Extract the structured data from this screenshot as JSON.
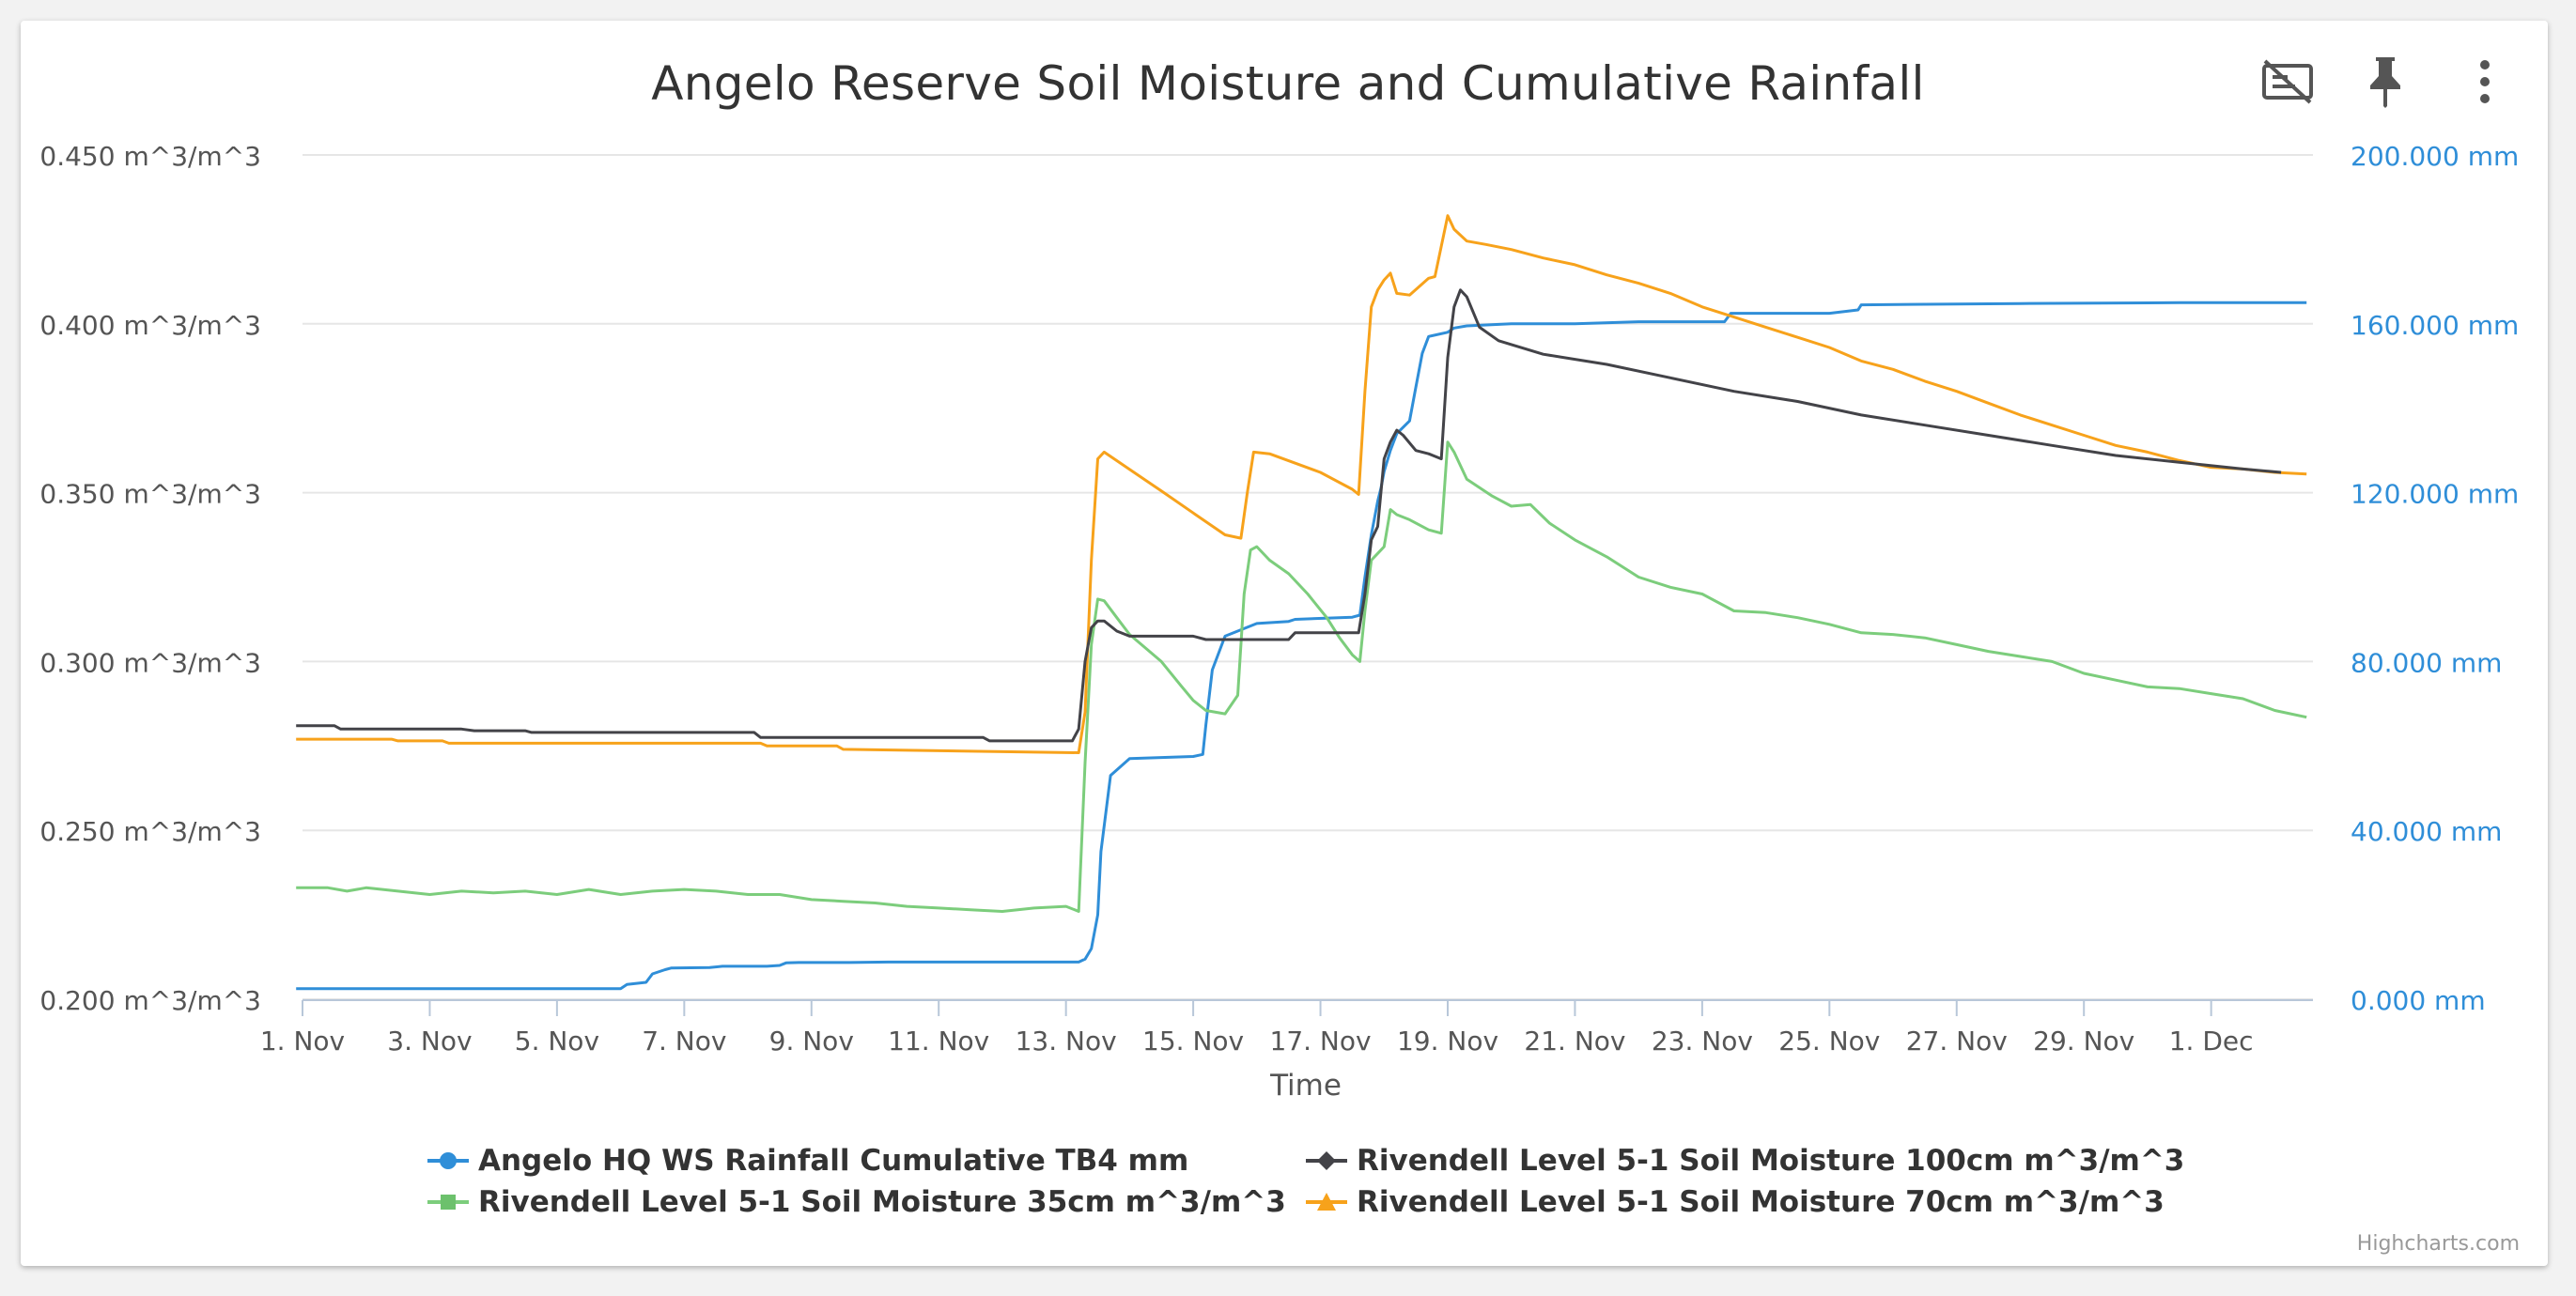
{
  "chart_data": {
    "type": "line",
    "title": "Angelo Reserve Soil Moisture and Cumulative Rainfall",
    "xlabel": "Time",
    "x_ticks": [
      "1. Nov",
      "3. Nov",
      "5. Nov",
      "7. Nov",
      "9. Nov",
      "11. Nov",
      "13. Nov",
      "15. Nov",
      "17. Nov",
      "19. Nov",
      "21. Nov",
      "23. Nov",
      "25. Nov",
      "27. Nov",
      "29. Nov",
      "1. Dec"
    ],
    "xlim": [
      0.0,
      31.6
    ],
    "y_left": {
      "ticks": [
        "0.200 m^3/m^3",
        "0.250 m^3/m^3",
        "0.300 m^3/m^3",
        "0.350 m^3/m^3",
        "0.400 m^3/m^3",
        "0.450 m^3/m^3"
      ],
      "ylim": [
        0.2,
        0.45
      ]
    },
    "y_right": {
      "ticks": [
        "0.000 mm",
        "40.000 mm",
        "80.000 mm",
        "120.000 mm",
        "160.000 mm",
        "200.000 mm"
      ],
      "ylim": [
        0,
        200
      ]
    },
    "grid": true,
    "legend_position": "bottom",
    "credits": "Highcharts.com",
    "series": [
      {
        "name": "Angelo HQ WS Rainfall Cumulative TB4 mm",
        "axis": "right",
        "color": "#2f8ed8",
        "marker": "circle",
        "points": [
          [
            -0.1,
            2.5
          ],
          [
            5,
            2.5
          ],
          [
            5.1,
            3.5
          ],
          [
            5.4,
            4
          ],
          [
            5.5,
            6
          ],
          [
            5.7,
            7
          ],
          [
            5.8,
            7.4
          ],
          [
            6.4,
            7.5
          ],
          [
            6.6,
            7.8
          ],
          [
            7.3,
            7.8
          ],
          [
            7.5,
            8
          ],
          [
            7.6,
            8.6
          ],
          [
            7.8,
            8.7
          ],
          [
            8.6,
            8.7
          ],
          [
            9.2,
            8.8
          ],
          [
            11,
            8.8
          ],
          [
            12.2,
            8.8
          ],
          [
            12.3,
            9.5
          ],
          [
            12.4,
            12
          ],
          [
            12.5,
            20
          ],
          [
            12.55,
            35
          ],
          [
            12.7,
            53
          ],
          [
            13,
            57
          ],
          [
            14,
            57.5
          ],
          [
            14.15,
            58
          ],
          [
            14.2,
            65
          ],
          [
            14.3,
            78
          ],
          [
            14.5,
            86
          ],
          [
            15,
            89
          ],
          [
            15.5,
            89.5
          ],
          [
            15.6,
            90
          ],
          [
            16.5,
            90.5
          ],
          [
            16.62,
            91
          ],
          [
            16.7,
            100
          ],
          [
            16.8,
            110
          ],
          [
            16.9,
            118
          ],
          [
            16.95,
            121
          ],
          [
            17,
            125
          ],
          [
            17.1,
            130
          ],
          [
            17.2,
            134
          ],
          [
            17.4,
            137
          ],
          [
            17.5,
            145
          ],
          [
            17.6,
            153
          ],
          [
            17.7,
            157
          ],
          [
            18,
            158
          ],
          [
            18.1,
            159
          ],
          [
            18.3,
            159.5
          ],
          [
            19,
            160
          ],
          [
            20,
            160
          ],
          [
            21,
            160.5
          ],
          [
            22.35,
            160.5
          ],
          [
            22.45,
            162.5
          ],
          [
            24,
            162.5
          ],
          [
            24.45,
            163.3
          ],
          [
            24.5,
            164.5
          ],
          [
            27,
            164.8
          ],
          [
            29.5,
            165
          ],
          [
            31.5,
            165
          ]
        ]
      },
      {
        "name": "Rivendell Level 5-1 Soil Moisture 100cm m^3/m^3",
        "axis": "left",
        "color": "#434348",
        "marker": "diamond",
        "points": [
          [
            -0.1,
            0.281
          ],
          [
            0.5,
            0.281
          ],
          [
            0.6,
            0.28
          ],
          [
            2.5,
            0.28
          ],
          [
            2.7,
            0.2795
          ],
          [
            3.5,
            0.2795
          ],
          [
            3.6,
            0.279
          ],
          [
            7.1,
            0.279
          ],
          [
            7.2,
            0.2775
          ],
          [
            10.7,
            0.2775
          ],
          [
            10.8,
            0.2765
          ],
          [
            12.1,
            0.2765
          ],
          [
            12.2,
            0.28
          ],
          [
            12.3,
            0.3
          ],
          [
            12.4,
            0.31
          ],
          [
            12.5,
            0.312
          ],
          [
            12.6,
            0.312
          ],
          [
            12.8,
            0.309
          ],
          [
            13,
            0.3075
          ],
          [
            14,
            0.3075
          ],
          [
            14.2,
            0.3065
          ],
          [
            15.5,
            0.3065
          ],
          [
            15.6,
            0.3085
          ],
          [
            16.6,
            0.3085
          ],
          [
            16.7,
            0.32
          ],
          [
            16.8,
            0.336
          ],
          [
            16.9,
            0.34
          ],
          [
            17,
            0.36
          ],
          [
            17.1,
            0.365
          ],
          [
            17.2,
            0.3685
          ],
          [
            17.3,
            0.367
          ],
          [
            17.5,
            0.3625
          ],
          [
            17.7,
            0.3615
          ],
          [
            17.9,
            0.36
          ],
          [
            18,
            0.39
          ],
          [
            18.1,
            0.405
          ],
          [
            18.2,
            0.41
          ],
          [
            18.3,
            0.408
          ],
          [
            18.5,
            0.399
          ],
          [
            18.8,
            0.395
          ],
          [
            19.5,
            0.391
          ],
          [
            20.5,
            0.388
          ],
          [
            21.5,
            0.384
          ],
          [
            22.5,
            0.38
          ],
          [
            23.5,
            0.377
          ],
          [
            24.5,
            0.373
          ],
          [
            25.5,
            0.37
          ],
          [
            26.5,
            0.367
          ],
          [
            27.5,
            0.364
          ],
          [
            28.5,
            0.361
          ],
          [
            29.5,
            0.359
          ],
          [
            30.5,
            0.357
          ],
          [
            31.1,
            0.356
          ]
        ]
      },
      {
        "name": "Rivendell Level 5-1 Soil Moisture 35cm m^3/m^3",
        "axis": "left",
        "color": "#7ccd7c",
        "marker": "square",
        "points": [
          [
            -0.1,
            0.233
          ],
          [
            0.4,
            0.233
          ],
          [
            0.7,
            0.232
          ],
          [
            1,
            0.233
          ],
          [
            1.5,
            0.232
          ],
          [
            2,
            0.231
          ],
          [
            2.5,
            0.232
          ],
          [
            3,
            0.2315
          ],
          [
            3.5,
            0.232
          ],
          [
            4,
            0.231
          ],
          [
            4.5,
            0.2325
          ],
          [
            5,
            0.231
          ],
          [
            5.5,
            0.232
          ],
          [
            6,
            0.2325
          ],
          [
            6.5,
            0.232
          ],
          [
            7,
            0.231
          ],
          [
            7.5,
            0.231
          ],
          [
            8,
            0.2295
          ],
          [
            8.5,
            0.229
          ],
          [
            9,
            0.2285
          ],
          [
            9.5,
            0.2275
          ],
          [
            10,
            0.227
          ],
          [
            10.5,
            0.2265
          ],
          [
            11,
            0.226
          ],
          [
            11.5,
            0.227
          ],
          [
            12,
            0.2275
          ],
          [
            12.2,
            0.226
          ],
          [
            12.3,
            0.27
          ],
          [
            12.4,
            0.305
          ],
          [
            12.5,
            0.3185
          ],
          [
            12.6,
            0.318
          ],
          [
            12.8,
            0.313
          ],
          [
            13,
            0.308
          ],
          [
            13.5,
            0.3
          ],
          [
            13.8,
            0.293
          ],
          [
            14,
            0.2885
          ],
          [
            14.2,
            0.2855
          ],
          [
            14.5,
            0.2845
          ],
          [
            14.7,
            0.29
          ],
          [
            14.8,
            0.32
          ],
          [
            14.9,
            0.333
          ],
          [
            15,
            0.334
          ],
          [
            15.2,
            0.33
          ],
          [
            15.5,
            0.326
          ],
          [
            15.8,
            0.32
          ],
          [
            16.1,
            0.313
          ],
          [
            16.3,
            0.307
          ],
          [
            16.5,
            0.302
          ],
          [
            16.62,
            0.3
          ],
          [
            16.7,
            0.315
          ],
          [
            16.8,
            0.33
          ],
          [
            16.9,
            0.332
          ],
          [
            17,
            0.334
          ],
          [
            17.1,
            0.345
          ],
          [
            17.2,
            0.3435
          ],
          [
            17.4,
            0.342
          ],
          [
            17.7,
            0.339
          ],
          [
            17.9,
            0.338
          ],
          [
            18,
            0.365
          ],
          [
            18.1,
            0.362
          ],
          [
            18.3,
            0.354
          ],
          [
            18.7,
            0.349
          ],
          [
            19,
            0.346
          ],
          [
            19.3,
            0.3465
          ],
          [
            19.6,
            0.341
          ],
          [
            20,
            0.336
          ],
          [
            20.5,
            0.331
          ],
          [
            21,
            0.325
          ],
          [
            21.5,
            0.322
          ],
          [
            22,
            0.32
          ],
          [
            22.5,
            0.315
          ],
          [
            23,
            0.3145
          ],
          [
            23.5,
            0.313
          ],
          [
            24,
            0.311
          ],
          [
            24.5,
            0.3085
          ],
          [
            25,
            0.308
          ],
          [
            25.5,
            0.307
          ],
          [
            26,
            0.305
          ],
          [
            26.5,
            0.303
          ],
          [
            27,
            0.3015
          ],
          [
            27.5,
            0.3
          ],
          [
            28,
            0.2965
          ],
          [
            28.5,
            0.2945
          ],
          [
            29,
            0.2925
          ],
          [
            29.5,
            0.292
          ],
          [
            30,
            0.2905
          ],
          [
            30.5,
            0.289
          ],
          [
            31,
            0.2855
          ],
          [
            31.5,
            0.2835
          ]
        ]
      },
      {
        "name": "Rivendell Level 5-1 Soil Moisture 70cm m^3/m^3",
        "axis": "left",
        "color": "#f7a21b",
        "marker": "triangle",
        "points": [
          [
            -0.1,
            0.277
          ],
          [
            1.4,
            0.277
          ],
          [
            1.5,
            0.2765
          ],
          [
            2.2,
            0.2765
          ],
          [
            2.3,
            0.2758
          ],
          [
            7.2,
            0.2758
          ],
          [
            7.3,
            0.275
          ],
          [
            8.4,
            0.275
          ],
          [
            8.5,
            0.274
          ],
          [
            12.2,
            0.273
          ],
          [
            12.3,
            0.285
          ],
          [
            12.4,
            0.33
          ],
          [
            12.5,
            0.36
          ],
          [
            12.6,
            0.362
          ],
          [
            13.5,
            0.3505
          ],
          [
            14,
            0.344
          ],
          [
            14.5,
            0.3375
          ],
          [
            14.75,
            0.3365
          ],
          [
            14.85,
            0.35
          ],
          [
            14.95,
            0.362
          ],
          [
            15.2,
            0.3615
          ],
          [
            16,
            0.356
          ],
          [
            16.5,
            0.351
          ],
          [
            16.6,
            0.3495
          ],
          [
            16.7,
            0.38
          ],
          [
            16.8,
            0.405
          ],
          [
            16.9,
            0.41
          ],
          [
            17,
            0.413
          ],
          [
            17.1,
            0.415
          ],
          [
            17.2,
            0.409
          ],
          [
            17.4,
            0.4085
          ],
          [
            17.7,
            0.4135
          ],
          [
            17.8,
            0.414
          ],
          [
            18,
            0.432
          ],
          [
            18.1,
            0.428
          ],
          [
            18.3,
            0.4245
          ],
          [
            18.6,
            0.4235
          ],
          [
            19,
            0.422
          ],
          [
            19.5,
            0.4195
          ],
          [
            20,
            0.4175
          ],
          [
            20.5,
            0.4145
          ],
          [
            21,
            0.412
          ],
          [
            21.5,
            0.409
          ],
          [
            22,
            0.405
          ],
          [
            22.5,
            0.402
          ],
          [
            23,
            0.399
          ],
          [
            23.5,
            0.396
          ],
          [
            24,
            0.393
          ],
          [
            24.5,
            0.389
          ],
          [
            25,
            0.3865
          ],
          [
            25.5,
            0.383
          ],
          [
            26,
            0.38
          ],
          [
            26.5,
            0.3765
          ],
          [
            27,
            0.373
          ],
          [
            27.5,
            0.37
          ],
          [
            28,
            0.367
          ],
          [
            28.5,
            0.364
          ],
          [
            29,
            0.362
          ],
          [
            29.5,
            0.3595
          ],
          [
            30,
            0.3575
          ],
          [
            30.5,
            0.357
          ],
          [
            31,
            0.356
          ],
          [
            31.5,
            0.3555
          ]
        ]
      }
    ]
  },
  "toolbar": {
    "hide_icon": "eye-off-icon",
    "pin_icon": "pin-icon",
    "menu_icon": "more-vert-icon"
  }
}
